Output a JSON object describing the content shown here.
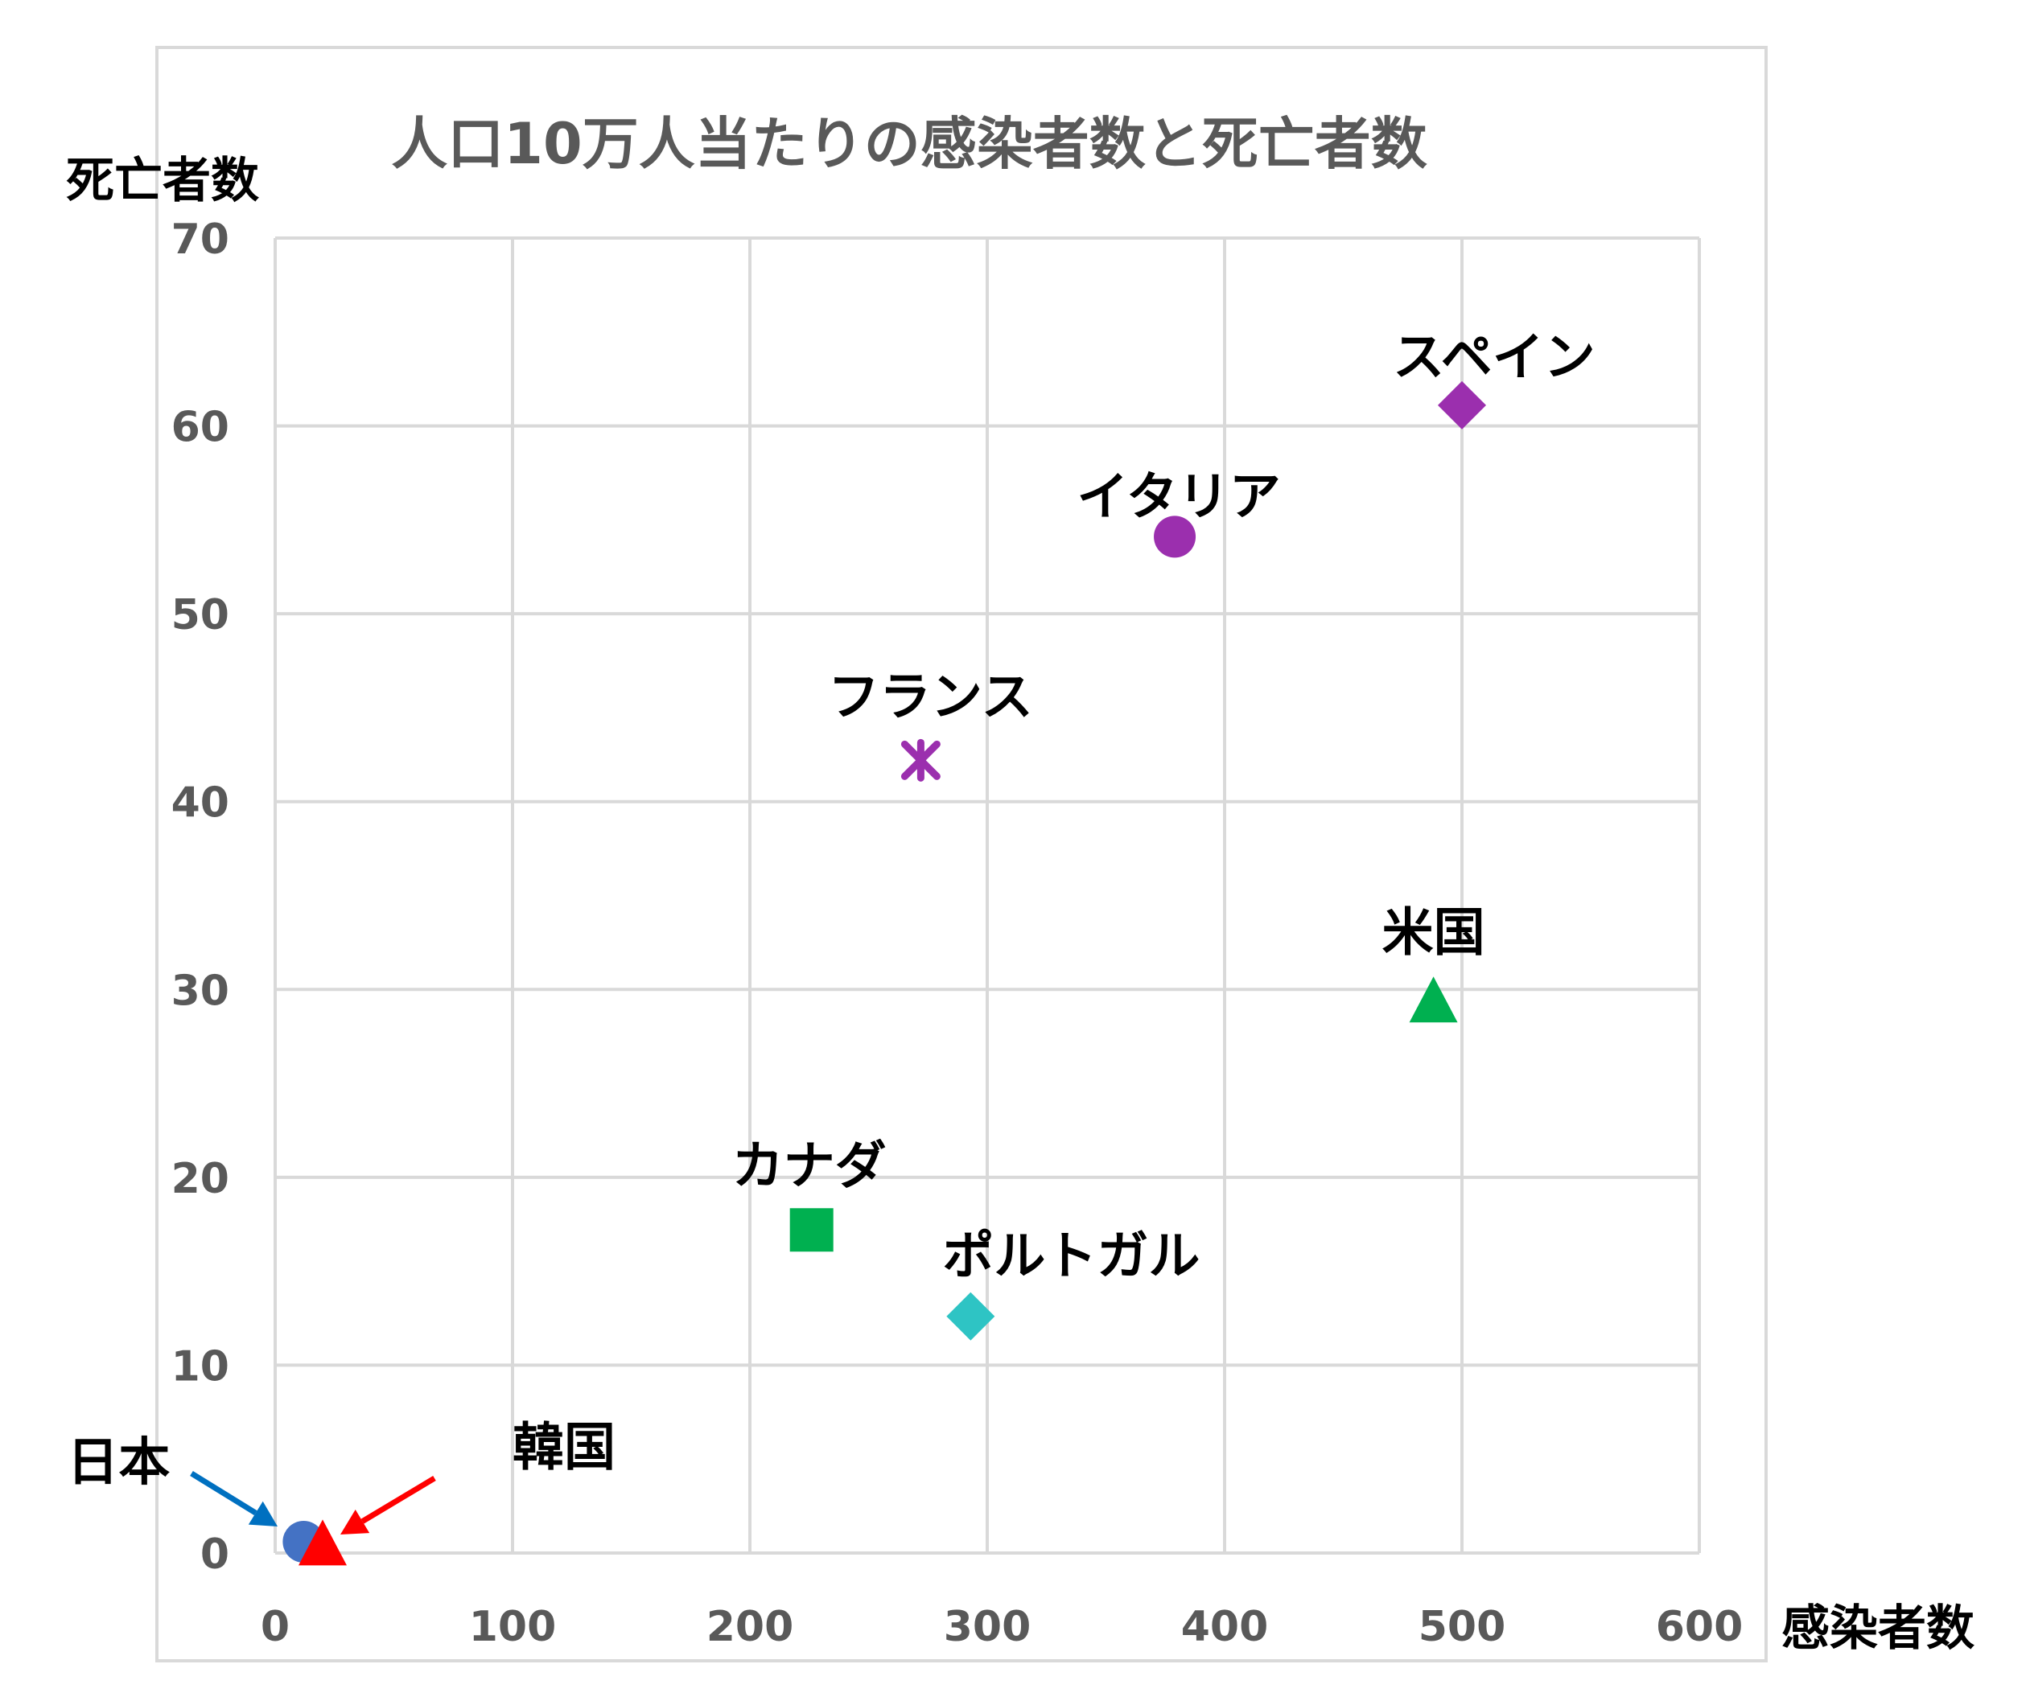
{
  "chart_data": {
    "type": "scatter",
    "title": "人口10万人当たりの感染者数と死亡者数",
    "xlabel": "感染者数",
    "ylabel": "死亡者数",
    "xlim": [
      0,
      600
    ],
    "ylim": [
      0,
      70
    ],
    "xticks": [
      "0",
      "100",
      "200",
      "300",
      "400",
      "500",
      "600"
    ],
    "yticks": [
      "0",
      "10",
      "20",
      "30",
      "40",
      "50",
      "60",
      "70"
    ],
    "grid": true,
    "legend": "none",
    "series": [
      {
        "name": "日本",
        "x": 12,
        "y": 0.6,
        "marker": "circle",
        "color": "#4472c4"
      },
      {
        "name": "韓国",
        "x": 20,
        "y": 0.5,
        "marker": "triangle",
        "color": "#ff0000"
      },
      {
        "name": "カナダ",
        "x": 226,
        "y": 17.2,
        "marker": "square",
        "color": "#00b050"
      },
      {
        "name": "ポルトガル",
        "x": 293,
        "y": 12.6,
        "marker": "diamond",
        "color": "#2ec4c4"
      },
      {
        "name": "フランス",
        "x": 272,
        "y": 42.2,
        "marker": "x",
        "color": "#9b2fae"
      },
      {
        "name": "イタリア",
        "x": 379,
        "y": 54.1,
        "marker": "circle",
        "color": "#9b2fae"
      },
      {
        "name": "スペイン",
        "x": 500,
        "y": 61.1,
        "marker": "diamond",
        "color": "#9b2fae"
      },
      {
        "name": "米国",
        "x": 488,
        "y": 29.4,
        "marker": "triangle",
        "color": "#00b050"
      }
    ]
  },
  "colors": {
    "grid": "#d9d9d9",
    "tick_text": "#595959",
    "title_text": "#595959",
    "label_text": "#000000",
    "japan_arrow": "#0070c0",
    "korea_arrow": "#ff0000"
  }
}
